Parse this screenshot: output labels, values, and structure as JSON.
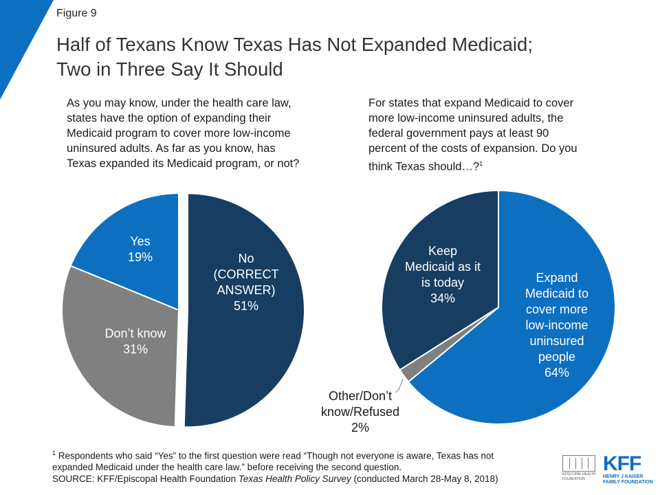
{
  "header": {
    "figure_label": "Figure 9",
    "title_line1": "Half of Texans Know Texas Has Not Expanded Medicaid;",
    "title_line2": "Two in Three Say It Should",
    "accent_color": "#0d6fbf"
  },
  "questions": {
    "left": [
      "As you may know, under the health care law,",
      "states have the option of expanding their",
      "Medicaid program to cover more low-income",
      "uninsured adults. As far as you know, has",
      "Texas expanded its Medicaid program, or not?"
    ],
    "right_lines": [
      "For states that expand Medicaid to cover",
      "more low-income uninsured adults, the",
      "federal government pays at least 90",
      "percent of the costs of expansion. Do you",
      "think Texas should…?"
    ],
    "right_marker": "1"
  },
  "chart_data": [
    {
      "type": "pie",
      "slices": [
        {
          "label_lines": [
            "No",
            "(CORRECT",
            "ANSWER)",
            "51%"
          ],
          "value": 51,
          "color": "#173e61",
          "exploded": true
        },
        {
          "label_lines": [
            "Don’t know",
            "31%"
          ],
          "value": 31,
          "color": "#808080",
          "exploded": false
        },
        {
          "label_lines": [
            "Yes",
            "19%"
          ],
          "value": 19,
          "color": "#0d6fbf",
          "exploded": false
        }
      ]
    },
    {
      "type": "pie",
      "slices": [
        {
          "label_lines": [
            "Expand",
            "Medicaid to",
            "cover more",
            "low-income",
            "uninsured",
            "people",
            "64%"
          ],
          "value": 64,
          "color": "#0d6fbf",
          "exploded": false
        },
        {
          "label_lines": [
            "Other/Don’t",
            "know/Refused",
            "2%"
          ],
          "value": 2,
          "color": "#808080",
          "exploded": false
        },
        {
          "label_lines": [
            "Keep",
            "Medicaid as it",
            "is today",
            "34%"
          ],
          "value": 34,
          "color": "#173e61",
          "exploded": false
        }
      ]
    }
  ],
  "footnote": {
    "marker": "1",
    "line1": " Respondents who said “Yes” to the first question were read “Though not everyone is aware, Texas has not",
    "line2": "expanded Medicaid under the health care law.” before receiving the second question.",
    "source_prefix": "SOURCE: KFF/Episcopal Health Foundation ",
    "source_italic": "Texas Health Policy Survey",
    "source_suffix": " (conducted March 28-May 8, 2018)"
  },
  "logos": {
    "ehf_line1": "EPISCOPAL HEALTH",
    "ehf_line2": "FOUNDATION",
    "kff_mark": "KFF",
    "kff_line1": "HENRY J KAISER",
    "kff_line2": "FAMILY FOUNDATION"
  }
}
